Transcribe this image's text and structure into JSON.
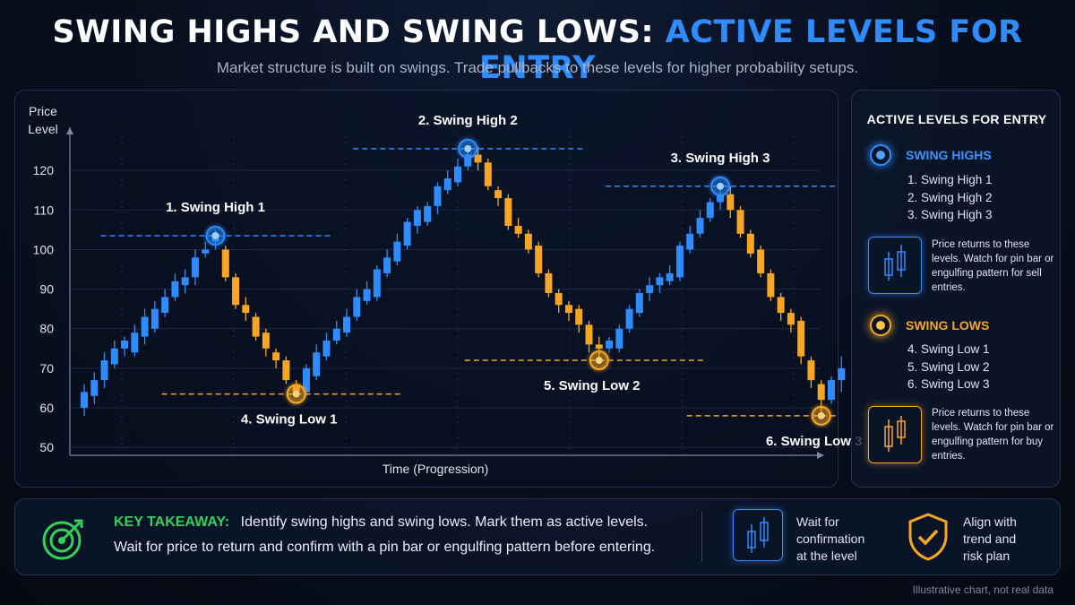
{
  "header": {
    "title_white": "SWING HIGHS AND SWING LOWS:",
    "title_blue": "ACTIVE LEVELS FOR ENTRY",
    "subtitle": "Market structure is built on swings. Trade pullbacks to these levels for higher probability setups."
  },
  "chart_data": {
    "type": "candlestick",
    "ylabel": "Price\nLevel",
    "xlabel": "Time (Progression)",
    "ylim": [
      48,
      130
    ],
    "yticks": [
      50,
      60,
      70,
      80,
      90,
      100,
      110,
      120
    ],
    "grid": true,
    "candles": [
      {
        "o": 60,
        "c": 64,
        "h": 66,
        "l": 58
      },
      {
        "o": 63,
        "c": 67,
        "h": 69,
        "l": 61
      },
      {
        "o": 67,
        "c": 72,
        "h": 74,
        "l": 65
      },
      {
        "o": 71,
        "c": 75,
        "h": 77,
        "l": 70
      },
      {
        "o": 75,
        "c": 77,
        "h": 78,
        "l": 73
      },
      {
        "o": 74,
        "c": 79,
        "h": 81,
        "l": 73
      },
      {
        "o": 78,
        "c": 83,
        "h": 85,
        "l": 76
      },
      {
        "o": 80,
        "c": 85,
        "h": 87,
        "l": 79
      },
      {
        "o": 84,
        "c": 88,
        "h": 90,
        "l": 83
      },
      {
        "o": 88,
        "c": 92,
        "h": 94,
        "l": 87
      },
      {
        "o": 91,
        "c": 93,
        "h": 95,
        "l": 89
      },
      {
        "o": 93,
        "c": 98,
        "h": 100,
        "l": 91
      },
      {
        "o": 99,
        "c": 100,
        "h": 102,
        "l": 98
      },
      {
        "o": 102,
        "c": 104,
        "h": 105,
        "l": 100
      },
      {
        "o": 100,
        "c": 93,
        "h": 101,
        "l": 92
      },
      {
        "o": 93,
        "c": 86,
        "h": 94,
        "l": 85
      },
      {
        "o": 86,
        "c": 84,
        "h": 88,
        "l": 82
      },
      {
        "o": 83,
        "c": 78,
        "h": 84,
        "l": 77
      },
      {
        "o": 79,
        "c": 75,
        "h": 80,
        "l": 73
      },
      {
        "o": 74,
        "c": 72,
        "h": 75,
        "l": 70
      },
      {
        "o": 72,
        "c": 67,
        "h": 73,
        "l": 66
      },
      {
        "o": 66,
        "c": 64,
        "h": 67,
        "l": 63
      },
      {
        "o": 64,
        "c": 70,
        "h": 71,
        "l": 63
      },
      {
        "o": 68,
        "c": 74,
        "h": 76,
        "l": 67
      },
      {
        "o": 73,
        "c": 77,
        "h": 79,
        "l": 72
      },
      {
        "o": 77,
        "c": 80,
        "h": 82,
        "l": 76
      },
      {
        "o": 79,
        "c": 83,
        "h": 85,
        "l": 78
      },
      {
        "o": 83,
        "c": 88,
        "h": 90,
        "l": 82
      },
      {
        "o": 87,
        "c": 90,
        "h": 92,
        "l": 86
      },
      {
        "o": 88,
        "c": 95,
        "h": 96,
        "l": 87
      },
      {
        "o": 94,
        "c": 98,
        "h": 100,
        "l": 93
      },
      {
        "o": 97,
        "c": 102,
        "h": 104,
        "l": 96
      },
      {
        "o": 101,
        "c": 107,
        "h": 108,
        "l": 100
      },
      {
        "o": 106,
        "c": 110,
        "h": 111,
        "l": 104
      },
      {
        "o": 107,
        "c": 111,
        "h": 112,
        "l": 106
      },
      {
        "o": 111,
        "c": 116,
        "h": 117,
        "l": 109
      },
      {
        "o": 115,
        "c": 118,
        "h": 120,
        "l": 114
      },
      {
        "o": 117,
        "c": 121,
        "h": 123,
        "l": 116
      },
      {
        "o": 121,
        "c": 124,
        "h": 126,
        "l": 120
      },
      {
        "o": 124,
        "c": 122,
        "h": 126,
        "l": 120
      },
      {
        "o": 122,
        "c": 116,
        "h": 123,
        "l": 115
      },
      {
        "o": 115,
        "c": 113,
        "h": 116,
        "l": 111
      },
      {
        "o": 113,
        "c": 106,
        "h": 114,
        "l": 105
      },
      {
        "o": 106,
        "c": 104,
        "h": 108,
        "l": 103
      },
      {
        "o": 104,
        "c": 100,
        "h": 105,
        "l": 99
      },
      {
        "o": 101,
        "c": 94,
        "h": 102,
        "l": 93
      },
      {
        "o": 94,
        "c": 89,
        "h": 95,
        "l": 88
      },
      {
        "o": 89,
        "c": 86,
        "h": 90,
        "l": 84
      },
      {
        "o": 86,
        "c": 84,
        "h": 87,
        "l": 82
      },
      {
        "o": 85,
        "c": 81,
        "h": 86,
        "l": 79
      },
      {
        "o": 81,
        "c": 76,
        "h": 82,
        "l": 74
      },
      {
        "o": 76,
        "c": 75,
        "h": 78,
        "l": 72
      },
      {
        "o": 75,
        "c": 77,
        "h": 78,
        "l": 74
      },
      {
        "o": 75,
        "c": 80,
        "h": 81,
        "l": 74
      },
      {
        "o": 80,
        "c": 85,
        "h": 86,
        "l": 79
      },
      {
        "o": 84,
        "c": 89,
        "h": 90,
        "l": 83
      },
      {
        "o": 89,
        "c": 91,
        "h": 93,
        "l": 87
      },
      {
        "o": 91,
        "c": 93,
        "h": 94,
        "l": 89
      },
      {
        "o": 92,
        "c": 94,
        "h": 96,
        "l": 91
      },
      {
        "o": 93,
        "c": 101,
        "h": 102,
        "l": 92
      },
      {
        "o": 100,
        "c": 104,
        "h": 106,
        "l": 99
      },
      {
        "o": 104,
        "c": 108,
        "h": 110,
        "l": 103
      },
      {
        "o": 108,
        "c": 112,
        "h": 113,
        "l": 107
      },
      {
        "o": 112,
        "c": 114,
        "h": 116,
        "l": 110
      },
      {
        "o": 114,
        "c": 110,
        "h": 116,
        "l": 108
      },
      {
        "o": 110,
        "c": 104,
        "h": 111,
        "l": 103
      },
      {
        "o": 104,
        "c": 99,
        "h": 105,
        "l": 98
      },
      {
        "o": 100,
        "c": 94,
        "h": 101,
        "l": 93
      },
      {
        "o": 94,
        "c": 88,
        "h": 95,
        "l": 87
      },
      {
        "o": 88,
        "c": 84,
        "h": 89,
        "l": 82
      },
      {
        "o": 84,
        "c": 81,
        "h": 85,
        "l": 79
      },
      {
        "o": 82,
        "c": 73,
        "h": 83,
        "l": 71
      },
      {
        "o": 72,
        "c": 67,
        "h": 73,
        "l": 65
      },
      {
        "o": 66,
        "c": 62,
        "h": 67,
        "l": 58
      },
      {
        "o": 62,
        "c": 67,
        "h": 68,
        "l": 61
      },
      {
        "o": 67,
        "c": 70,
        "h": 73,
        "l": 64
      }
    ],
    "swing_highs": [
      {
        "label": "1. Swing High 1",
        "candle": 13,
        "price": 103.5
      },
      {
        "label": "2. Swing High 2",
        "candle": 38,
        "price": 125.5
      },
      {
        "label": "3. Swing High 3",
        "candle": 63,
        "price": 116
      }
    ],
    "swing_lows": [
      {
        "label": "4. Swing Low 1",
        "candle": 21,
        "price": 63.5
      },
      {
        "label": "5. Swing Low 2",
        "candle": 51,
        "price": 72
      },
      {
        "label": "6. Swing Low 3",
        "candle": 73,
        "price": 58
      }
    ],
    "colors": {
      "bull": "#2f8cff",
      "bear": "#f6a623",
      "grid": "#1c2844",
      "axis": "#7f8aa0"
    }
  },
  "side": {
    "title": "ACTIVE LEVELS FOR ENTRY",
    "highs_title": "SWING HIGHS",
    "highs_items": [
      "1. Swing High 1",
      "2. Swing High 2",
      "3. Swing High 3"
    ],
    "highs_note": "Price returns to these levels. Watch for pin bar or engulfing pattern for sell entries.",
    "lows_title": "SWING LOWS",
    "lows_items": [
      "4. Swing Low 1",
      "5. Swing Low 2",
      "6. Swing Low 3"
    ],
    "lows_note": "Price returns to these levels. Watch for pin bar or engulfing pattern for buy entries."
  },
  "takeaway": {
    "label": "KEY TAKEAWAY:",
    "line1": "Identify swing highs and swing lows. Mark them as active levels.",
    "line2": "Wait for price to return and confirm with a pin bar or engulfing pattern before entering.",
    "tip1": "Wait for\nconfirmation\nat the level",
    "tip2": "Align with\ntrend and\nrisk plan"
  },
  "footer": "Illustrative chart, not real data",
  "icons": [
    "target-icon",
    "candlestick-icon",
    "shield-check-icon"
  ]
}
